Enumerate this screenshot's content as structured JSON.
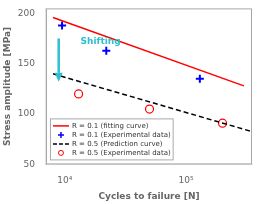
{
  "chart_data": {
    "type": "line",
    "xlabel": "Cycles to failure [N]",
    "ylabel": "Stress amplitude [MPa]",
    "log": "x",
    "xlim": [
      7000,
      350000
    ],
    "ylim": [
      50,
      205
    ],
    "xticks": [
      {
        "value": 10000,
        "label": "10⁴"
      },
      {
        "value": 100000,
        "label": "10⁵"
      }
    ],
    "yticks": [
      50,
      100,
      150,
      200
    ],
    "grid": false,
    "legend": "lower left",
    "series": [
      {
        "name": "R = 0.1 (fitting curve)",
        "color": "red",
        "line_style": "solid",
        "marker": "none",
        "x": [
          8000,
          300000
        ],
        "values": [
          196,
          128
        ]
      },
      {
        "name": "R = 0.1 (Experimental data)",
        "color": "blue",
        "line_style": "none",
        "marker": "plus",
        "x": [
          9500,
          22000,
          130000
        ],
        "values": [
          188,
          163,
          135
        ]
      },
      {
        "name": "R = 0.5 (Prediction curve)",
        "color": "black",
        "line_style": "dashed",
        "marker": "none",
        "x": [
          8000,
          340000
        ],
        "values": [
          140,
          83
        ]
      },
      {
        "name": "R = 0.5 (Experimental data)",
        "color": "red",
        "line_style": "none",
        "marker": "circle",
        "x": [
          13000,
          50000,
          200000
        ],
        "values": [
          120,
          105,
          91
        ]
      }
    ],
    "arrows": [
      {
        "x": 8912.509381337455,
        "y_start": 175,
        "y_end": 132,
        "color": "#2bbfcf"
      }
    ],
    "annotations": [
      {
        "text": "Shifting",
        "x": 13489.628825916532,
        "y": 172,
        "color": "#2bbfcf"
      }
    ]
  }
}
